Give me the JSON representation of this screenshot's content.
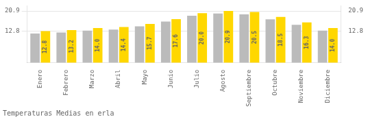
{
  "chart_data": {
    "type": "bar",
    "title": "Temperaturas Medias en erla",
    "categories": [
      "Enero",
      "Febrero",
      "Marzo",
      "Abril",
      "Mayo",
      "Junio",
      "Julio",
      "Agosto",
      "Septiembre",
      "Octubre",
      "Noviembre",
      "Diciembre"
    ],
    "series": [
      {
        "color": "#BBBBBB",
        "values": [
          11.8,
          12.2,
          13.0,
          13.4,
          14.7,
          16.6,
          19.0,
          19.9,
          19.5,
          17.5,
          15.3,
          13.0
        ]
      },
      {
        "color": "#FFD700",
        "values": [
          12.8,
          13.2,
          14.0,
          14.4,
          15.7,
          17.6,
          20.0,
          20.9,
          20.5,
          18.5,
          16.3,
          14.0
        ],
        "value_labels": [
          "12.8",
          "13.2",
          "14.0",
          "14.4",
          "15.7",
          "17.6",
          "20.0",
          "20.9",
          "20.5",
          "18.5",
          "16.3",
          "14.0"
        ],
        "data_labels": true
      }
    ],
    "ylim": [
      0,
      23.0
    ],
    "yticks": [
      12.8,
      20.9
    ],
    "y2lim": [
      0,
      23.0
    ],
    "y2ticks": [
      12.8,
      20.9
    ],
    "grid": true
  }
}
